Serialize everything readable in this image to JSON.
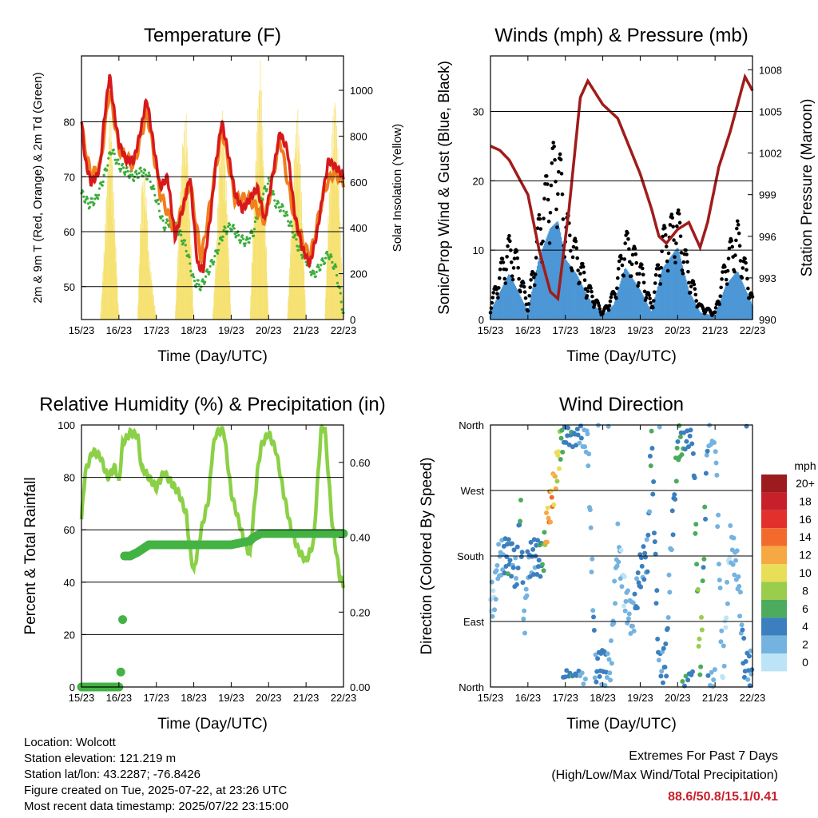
{
  "xticks": [
    "15/23",
    "16/23",
    "17/23",
    "18/23",
    "19/23",
    "20/23",
    "21/23",
    "22/23"
  ],
  "colors": {
    "red": "#d7191c",
    "orange": "#f07f1e",
    "green": "#3cae3c",
    "yellow": "#f6e06a",
    "blue": "#4d97d6",
    "black": "#000000",
    "maroon": "#a01c1c",
    "rh": "#8bd046",
    "precip": "#43b343",
    "accent": "#c8202a"
  },
  "chart_data": [
    {
      "type": "line",
      "title": "Temperature (F)",
      "xlabel": "Time (Day/UTC)",
      "ylabel": "2m & 9m T (Red, Orange) & 2m Td (Green)",
      "ylabel_right": "Solar Insolation (Yellow)",
      "xlim": [
        0,
        7
      ],
      "ylim": [
        44,
        92
      ],
      "ylim_right": [
        0,
        1150
      ],
      "yticks": [
        50,
        60,
        70,
        80
      ],
      "yticks_right": [
        0,
        200,
        400,
        600,
        800,
        1000
      ],
      "series": [
        {
          "name": "2m T",
          "color": "red",
          "axis": "left",
          "x": [
            0,
            0.1,
            0.25,
            0.4,
            0.5,
            0.6,
            0.75,
            0.85,
            1.0,
            1.2,
            1.4,
            1.6,
            1.7,
            1.75,
            1.9,
            2.1,
            2.3,
            2.5,
            2.7,
            2.9,
            3.1,
            3.25,
            3.45,
            3.6,
            3.75,
            3.9,
            4.1,
            4.3,
            4.5,
            4.7,
            4.9,
            5.1,
            5.3,
            5.5,
            5.7,
            5.9,
            6.1,
            6.3,
            6.5,
            6.6,
            6.75,
            6.9,
            7.0
          ],
          "values": [
            80,
            73,
            69,
            70,
            72,
            80,
            88.6,
            83,
            76,
            73,
            73,
            79,
            83,
            84,
            77,
            68,
            70,
            59,
            64,
            70,
            54,
            53,
            63,
            73,
            80,
            75,
            67,
            64,
            66,
            68,
            62,
            70,
            78,
            75,
            63,
            57,
            54,
            60,
            69,
            73,
            72,
            71,
            70
          ]
        },
        {
          "name": "9m T",
          "color": "orange",
          "axis": "left",
          "x": [
            0,
            0.25,
            0.5,
            0.75,
            1.0,
            1.4,
            1.75,
            2.1,
            2.5,
            2.9,
            3.2,
            3.6,
            3.75,
            4.1,
            4.5,
            4.9,
            5.3,
            5.7,
            6.1,
            6.5,
            6.75,
            7.0
          ],
          "values": [
            79,
            70,
            72,
            86,
            75,
            72,
            82,
            67,
            60,
            69,
            55,
            72,
            79,
            66,
            66,
            62,
            77,
            62,
            55,
            68,
            71,
            69
          ]
        },
        {
          "name": "2m Td",
          "color": "green",
          "axis": "left",
          "x": [
            0,
            0.2,
            0.4,
            0.6,
            0.8,
            1.0,
            1.2,
            1.4,
            1.6,
            1.8,
            2.0,
            2.2,
            2.4,
            2.6,
            2.8,
            3.0,
            3.2,
            3.4,
            3.6,
            3.8,
            4.0,
            4.2,
            4.4,
            4.6,
            4.8,
            5.0,
            5.2,
            5.4,
            5.6,
            5.8,
            6.0,
            6.2,
            6.4,
            6.6,
            6.8,
            7.0
          ],
          "values": [
            67,
            65,
            66,
            70,
            75,
            72,
            71,
            70,
            71,
            70,
            66,
            61,
            62,
            60,
            57,
            51,
            50,
            53,
            56,
            60,
            61,
            59,
            58,
            60,
            66,
            69,
            65,
            64,
            61,
            57,
            55,
            52,
            54,
            56,
            53,
            45
          ]
        },
        {
          "name": "Solar Insolation",
          "color": "yellow",
          "axis": "right",
          "x": [
            0.5,
            0.6,
            0.7,
            0.78,
            0.85,
            1.0,
            1.5,
            1.6,
            1.68,
            1.75,
            1.8,
            2.0,
            2.5,
            2.6,
            2.7,
            2.8,
            2.85,
            3.0,
            3.5,
            3.6,
            3.7,
            3.78,
            3.85,
            4.0,
            4.5,
            4.6,
            4.7,
            4.78,
            4.85,
            5.0,
            5.5,
            5.6,
            5.7,
            5.78,
            5.85,
            6.0,
            6.5,
            6.6,
            6.7,
            6.78,
            6.85,
            7.0
          ],
          "values": [
            0,
            300,
            700,
            950,
            600,
            0,
            0,
            600,
            650,
            500,
            300,
            0,
            0,
            400,
            800,
            900,
            700,
            0,
            0,
            300,
            800,
            950,
            700,
            0,
            0,
            500,
            900,
            1150,
            800,
            0,
            0,
            400,
            800,
            920,
            700,
            0,
            0,
            500,
            850,
            1000,
            750,
            0
          ]
        }
      ]
    },
    {
      "type": "scatter",
      "title": "Winds (mph) & Pressure (mb)",
      "xlabel": "Time (Day/UTC)",
      "ylabel": "Sonic/Prop Wind & Gust (Blue, Black)",
      "ylabel_right": "Station Pressure (Maroon)",
      "xlim": [
        0,
        7
      ],
      "ylim": [
        0,
        38
      ],
      "ylim_right": [
        990,
        1009
      ],
      "yticks": [
        0,
        10,
        20,
        30
      ],
      "yticks_right": [
        990,
        993,
        996,
        999,
        1002,
        1005,
        1008
      ],
      "series": [
        {
          "name": "Sonic/Prop Wind",
          "color": "blue",
          "axis": "left",
          "x": [
            0,
            0.3,
            0.5,
            0.7,
            1.0,
            1.3,
            1.6,
            1.8,
            2.0,
            2.3,
            2.6,
            3.0,
            3.3,
            3.6,
            4.0,
            4.3,
            4.6,
            5.0,
            5.3,
            5.6,
            6.0,
            6.3,
            6.6,
            7.0
          ],
          "values": [
            1,
            4,
            6,
            4,
            1,
            8,
            12,
            13,
            8,
            6,
            3,
            0.5,
            2,
            7,
            4,
            1,
            7,
            10,
            4,
            1,
            0.5,
            5,
            7,
            2
          ]
        },
        {
          "name": "Gust",
          "color": "black",
          "axis": "left",
          "x": [
            0,
            0.3,
            0.5,
            0.7,
            1.0,
            1.3,
            1.6,
            1.8,
            2.0,
            2.3,
            2.6,
            3.0,
            3.3,
            3.6,
            4.0,
            4.3,
            4.6,
            5.0,
            5.3,
            5.6,
            6.0,
            6.3,
            6.6,
            7.0
          ],
          "values": [
            2,
            8,
            11,
            9,
            2,
            14,
            22,
            25,
            15,
            10,
            5,
            1,
            4,
            12,
            8,
            2,
            12,
            15,
            7,
            2,
            1,
            9,
            13,
            3
          ]
        },
        {
          "name": "Station Pressure",
          "color": "maroon",
          "axis": "right",
          "x": [
            0,
            0.25,
            0.5,
            0.8,
            1.0,
            1.3,
            1.6,
            1.8,
            2.1,
            2.4,
            2.6,
            3.0,
            3.4,
            3.7,
            4.0,
            4.3,
            4.5,
            4.7,
            5.0,
            5.3,
            5.6,
            5.8,
            6.1,
            6.4,
            6.6,
            6.8,
            7.0
          ],
          "values": [
            1002.5,
            1002.2,
            1001.5,
            1000,
            999,
            995,
            992,
            991.5,
            998,
            1006,
            1007.2,
            1005.5,
            1004.5,
            1002.5,
            1000.5,
            998,
            996,
            995.5,
            996.5,
            997,
            995.2,
            997,
            1001,
            1003.5,
            1005.5,
            1007.5,
            1006.5
          ]
        }
      ]
    },
    {
      "type": "line",
      "title": "Relative Humidity (%) & Precipitation (in)",
      "xlabel": "Time (Day/UTC)",
      "ylabel": "Percent & Total Rainfall",
      "xlim": [
        0,
        7
      ],
      "ylim": [
        0,
        100
      ],
      "ylim_right": [
        0,
        0.7
      ],
      "yticks": [
        0,
        20,
        40,
        60,
        80,
        100
      ],
      "yticks_right": [
        "0.00",
        "0.20",
        "0.40",
        "0.60"
      ],
      "series": [
        {
          "name": "Relative Humidity",
          "color": "rh",
          "axis": "left",
          "x": [
            0,
            0.1,
            0.3,
            0.5,
            0.7,
            0.9,
            1.0,
            1.1,
            1.3,
            1.5,
            1.6,
            1.8,
            2.0,
            2.2,
            2.4,
            2.6,
            2.8,
            2.9,
            3.0,
            3.2,
            3.4,
            3.5,
            3.6,
            3.8,
            4.0,
            4.3,
            4.5,
            4.7,
            4.8,
            5.0,
            5.2,
            5.4,
            5.6,
            5.8,
            6.0,
            6.2,
            6.4,
            6.5,
            6.7,
            6.9,
            7.0
          ],
          "values": [
            64,
            82,
            90,
            88,
            80,
            84,
            78,
            93,
            97,
            96,
            84,
            80,
            76,
            82,
            78,
            74,
            66,
            52,
            44,
            60,
            72,
            90,
            97,
            98,
            74,
            58,
            50,
            82,
            92,
            97,
            90,
            74,
            60,
            52,
            48,
            55,
            98,
            99,
            62,
            42,
            39
          ]
        },
        {
          "name": "Total Precipitation",
          "color": "precip",
          "axis": "right",
          "x": [
            0,
            0.8,
            1.0,
            1.05,
            1.1,
            1.15,
            1.2,
            1.3,
            1.5,
            1.8,
            2.0,
            2.5,
            3.0,
            3.5,
            4.0,
            4.5,
            4.6,
            4.8,
            5.0,
            5.5,
            6.0,
            6.5,
            7.0
          ],
          "values": [
            0,
            0,
            0,
            0.04,
            0.18,
            0.35,
            0.35,
            0.35,
            0.36,
            0.38,
            0.38,
            0.38,
            0.38,
            0.38,
            0.38,
            0.39,
            0.4,
            0.41,
            0.41,
            0.41,
            0.41,
            0.41,
            0.41
          ]
        }
      ]
    },
    {
      "type": "scatter",
      "title": "Wind Direction",
      "xlabel": "Time (Day/UTC)",
      "ylabel": "Direction (Colored By Speed)",
      "xlim": [
        0,
        7
      ],
      "ylim": [
        0,
        360
      ],
      "ytick_labels": [
        "North",
        "East",
        "South",
        "West",
        "North"
      ],
      "colorbar_label": "mph",
      "colorbar_ticks": [
        "20+",
        "18",
        "16",
        "14",
        "12",
        "10",
        "8",
        "6",
        "4",
        "2",
        "0"
      ],
      "colorbar_colors": [
        "#9b1b1e",
        "#c8202a",
        "#e2312c",
        "#f26b2d",
        "#f6a943",
        "#e9de58",
        "#9acd4b",
        "#4cab5c",
        "#3b7fbe",
        "#74b3e0",
        "#bde4f6"
      ],
      "series": [
        {
          "name": "Direction",
          "x": [
            0.1,
            0.2,
            0.35,
            0.5,
            0.6,
            0.7,
            0.8,
            0.9,
            1.0,
            1.2,
            1.4,
            1.5,
            1.6,
            1.7,
            1.8,
            1.9,
            2.0,
            2.2,
            2.4,
            2.6,
            2.8,
            3.0,
            3.2,
            3.4,
            3.5,
            3.6,
            3.8,
            4.0,
            4.2,
            4.3,
            4.5,
            4.7,
            4.8,
            5.0,
            5.2,
            5.4,
            5.6,
            5.8,
            6.0,
            6.2,
            6.4,
            6.6,
            6.8,
            7.0
          ],
          "values": [
            120,
            170,
            180,
            180,
            175,
            150,
            250,
            80,
            170,
            180,
            175,
            220,
            250,
            275,
            310,
            340,
            360,
            355,
            360,
            340,
            20,
            30,
            20,
            200,
            160,
            120,
            90,
            160,
            180,
            350,
            20,
            40,
            170,
            330,
            350,
            360,
            15,
            350,
            360,
            10,
            200,
            160,
            20,
            30
          ],
          "speed": [
            1,
            2,
            3,
            5,
            4,
            3,
            6,
            2,
            3,
            4,
            5,
            12,
            14,
            12,
            10,
            6,
            4,
            5,
            3,
            2,
            3,
            4,
            2,
            2,
            1,
            1,
            3,
            4,
            3,
            5,
            3,
            4,
            2,
            6,
            5,
            4,
            8,
            3,
            2,
            1,
            1,
            2,
            4,
            3
          ]
        }
      ]
    }
  ],
  "info": {
    "location": "Location: Wolcott",
    "elevation": "Station elevation: 121.219 m",
    "latlon": "Station lat/lon: 43.2287; -76.8426",
    "created": "Figure created on Tue, 2025-07-22, at 23:26 UTC",
    "recent": "Most recent data timestamp: 2025/07/22 23:15:00"
  },
  "extremes": {
    "title": "Extremes For Past 7 Days",
    "subtitle": "(High/Low/Max Wind/Total Precipitation)",
    "values": "88.6/50.8/15.1/0.41"
  }
}
